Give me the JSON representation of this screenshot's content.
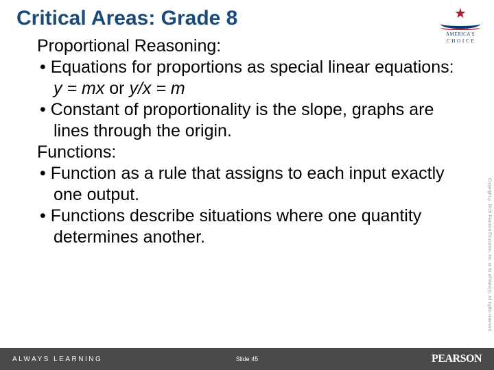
{
  "title": "Critical Areas: Grade 8",
  "logo_ac": {
    "line1": "AMERICA'S",
    "line2": "C H O I C E"
  },
  "body": {
    "subhead1": "Proportional Reasoning:",
    "b1_pre": "• Equations for proportions as special linear equations: ",
    "b1_eq1": "y = mx",
    "b1_mid": " or ",
    "b1_eq2": "y/x = m",
    "b2": "• Constant of proportionality is the slope, graphs are lines through the origin.",
    "subhead2": "Functions:",
    "b3": "• Function as a rule that assigns to each input exactly one output.",
    "b4": "• Functions describe situations where one quantity determines another."
  },
  "copyright": "Copyright © 2010 Pearson Education, Inc. or its affiliate(s). All rights reserved.",
  "footer": {
    "left": "ALWAYS LEARNING",
    "center": "Slide 45",
    "right": "PEARSON"
  },
  "colors": {
    "title": "#1a4a7a",
    "footer_bg": "#4a4a4a",
    "ac_red": "#b01c2e",
    "ac_blue": "#003a70"
  }
}
